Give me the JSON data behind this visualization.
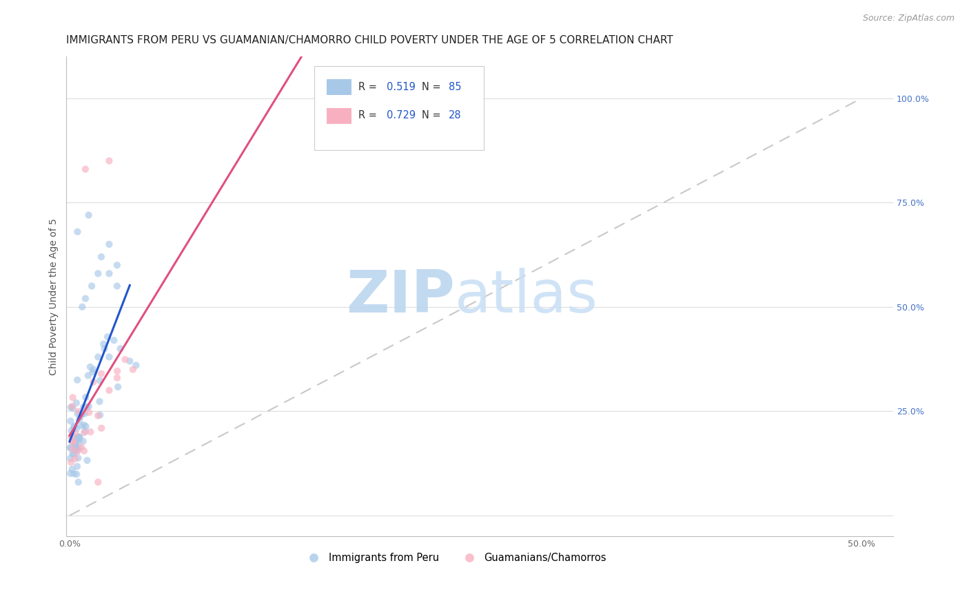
{
  "title": "IMMIGRANTS FROM PERU VS GUAMANIAN/CHAMORRO CHILD POVERTY UNDER THE AGE OF 5 CORRELATION CHART",
  "source": "Source: ZipAtlas.com",
  "ylabel": "Child Poverty Under the Age of 5",
  "xlim": [
    -0.002,
    0.52
  ],
  "ylim": [
    -0.05,
    1.1
  ],
  "xtick_positions": [
    0.0,
    0.5
  ],
  "xticklabels": [
    "0.0%",
    "50.0%"
  ],
  "ytick_positions": [
    0.0,
    0.25,
    0.5,
    0.75,
    1.0
  ],
  "yticklabels_right": [
    "",
    "25.0%",
    "50.0%",
    "75.0%",
    "100.0%"
  ],
  "legend_labels_bottom": [
    "Immigrants from Peru",
    "Guamanians/Chamorros"
  ],
  "blue_color": "#a8c8e8",
  "pink_color": "#f8b0c0",
  "blue_line_color": "#2255cc",
  "pink_line_color": "#e05080",
  "diag_line_color": "#bbbbbb",
  "watermark": "ZIPatlas",
  "watermark_color": "#d0e8f8",
  "background_color": "#ffffff",
  "grid_color": "#dddddd",
  "title_fontsize": 11,
  "axis_label_fontsize": 10,
  "tick_fontsize": 9,
  "source_fontsize": 9,
  "right_tick_color": "#4472C4",
  "scatter_alpha": 0.65,
  "scatter_size": 55
}
